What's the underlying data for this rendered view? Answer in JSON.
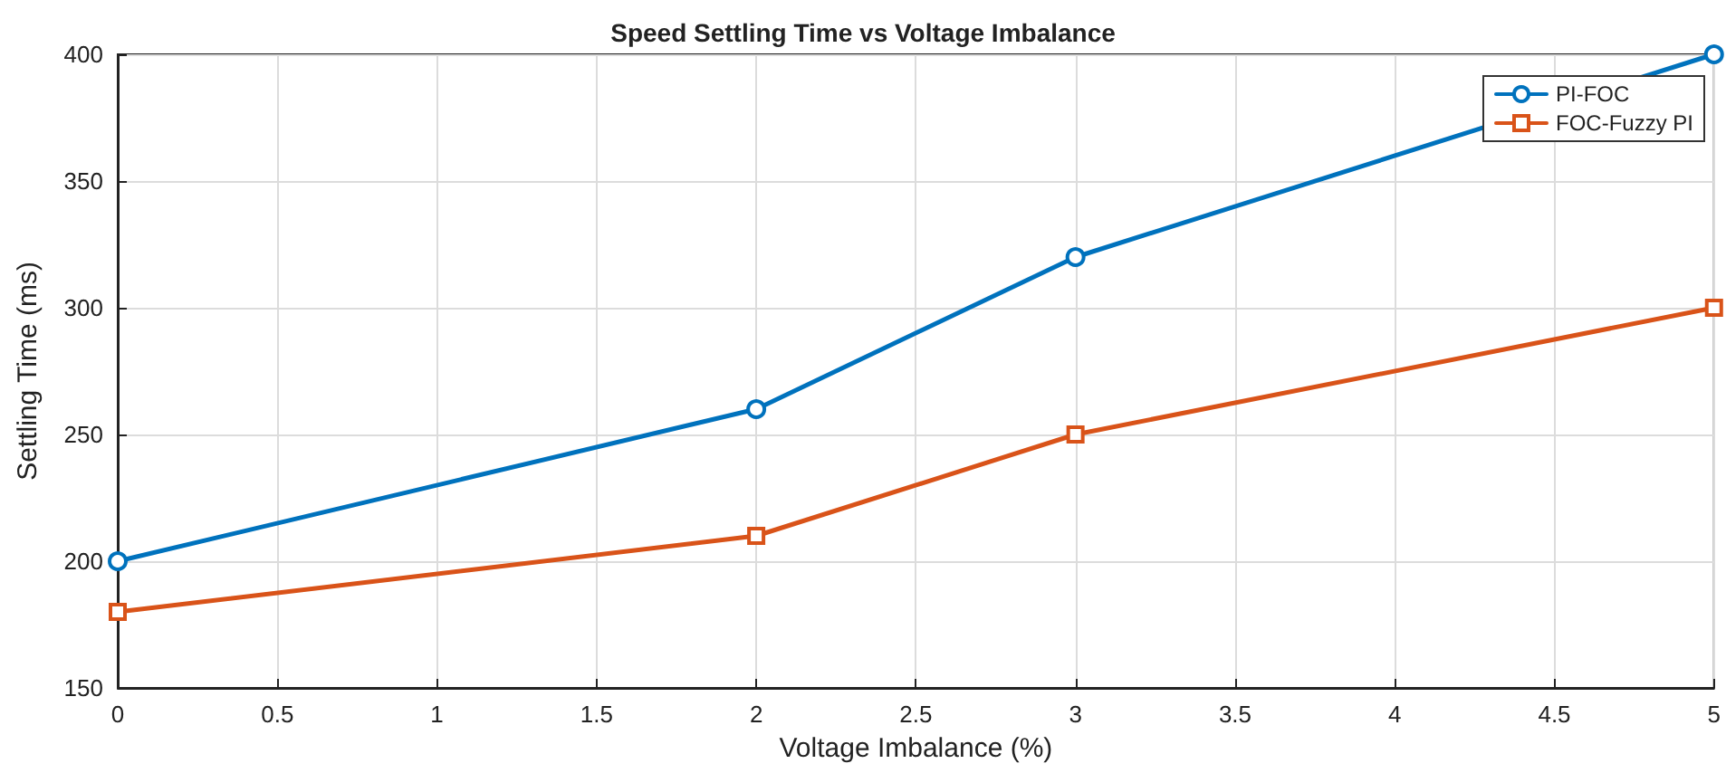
{
  "chart_data": {
    "type": "line",
    "title": "Speed Settling Time vs Voltage Imbalance",
    "xlabel": "Voltage Imbalance (%)",
    "ylabel": "Settling Time (ms)",
    "x": [
      0,
      2,
      3,
      5
    ],
    "series": [
      {
        "name": "PI-FOC",
        "color": "#0072bd",
        "marker": "circle",
        "values": [
          200,
          260,
          320,
          400
        ]
      },
      {
        "name": "FOC-Fuzzy PI",
        "color": "#d95319",
        "marker": "square",
        "values": [
          180,
          210,
          250,
          300
        ]
      }
    ],
    "xlim": [
      0,
      5
    ],
    "xticks": [
      0,
      0.5,
      1,
      1.5,
      2,
      2.5,
      3,
      3.5,
      4,
      4.5,
      5
    ],
    "ylim": [
      150,
      400
    ],
    "yticks": [
      150,
      200,
      250,
      300,
      350,
      400
    ],
    "grid": true,
    "legend": "top right",
    "line_style": "solid"
  }
}
